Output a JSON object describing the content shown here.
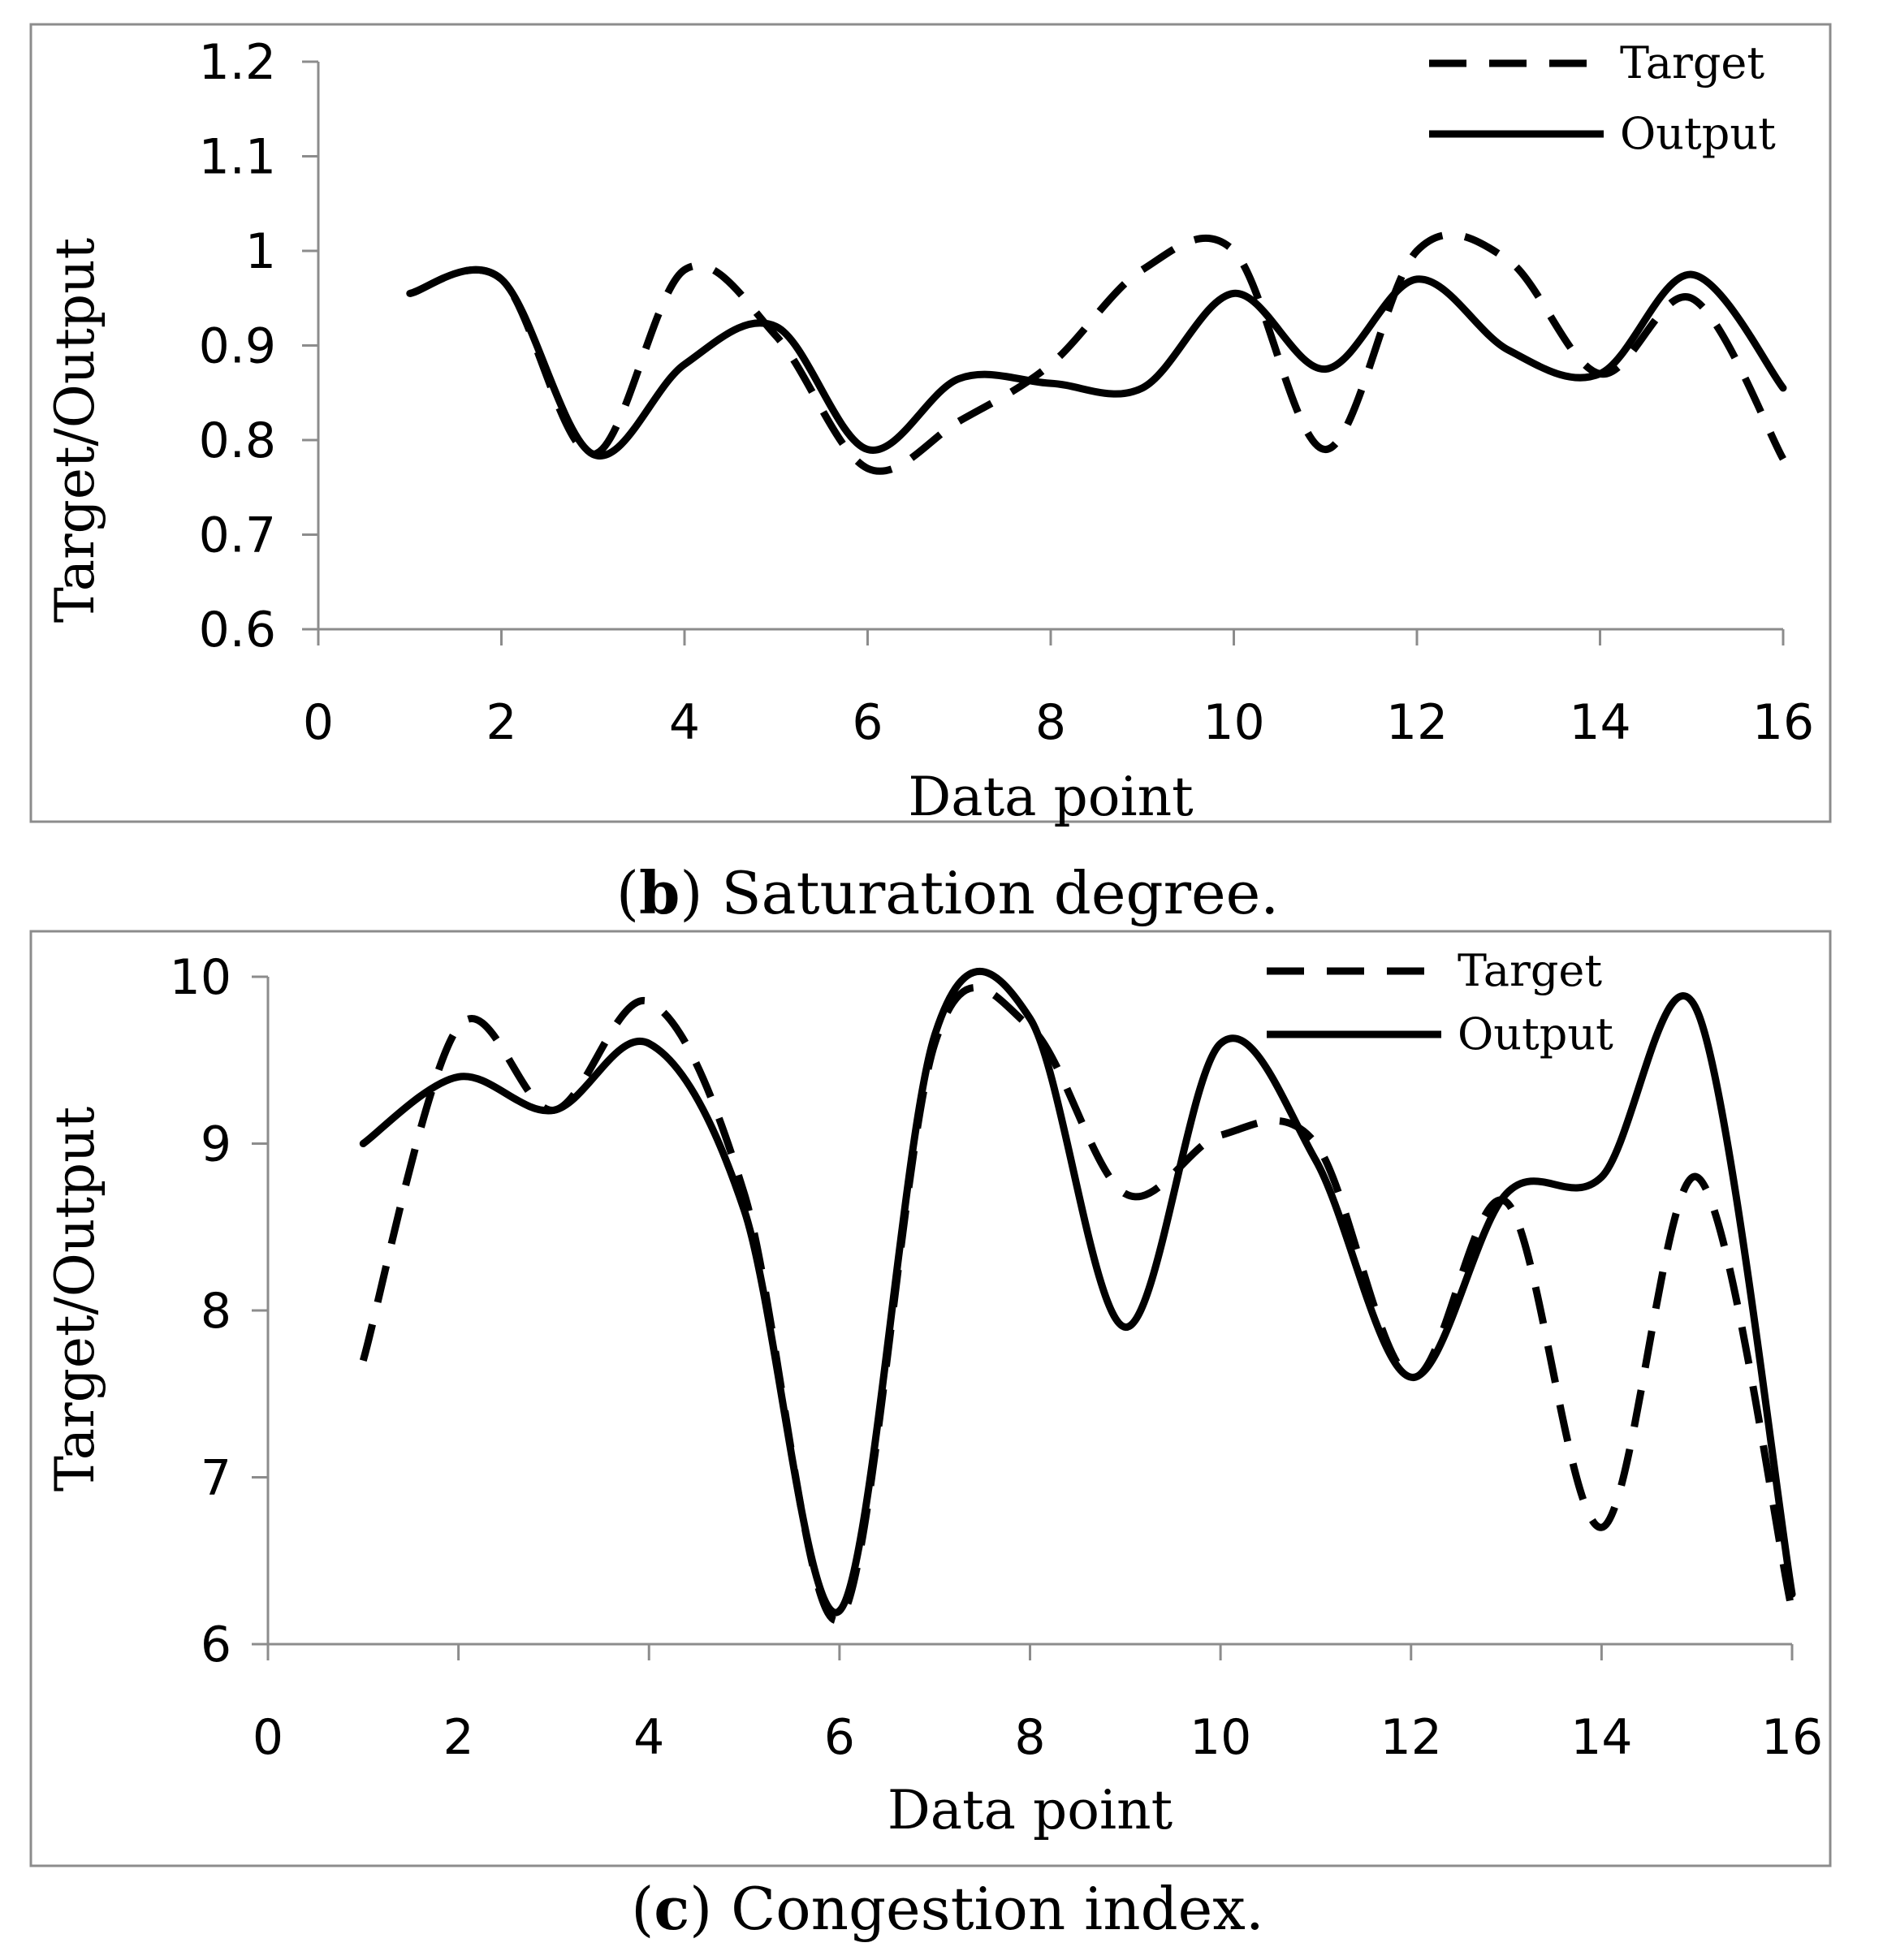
{
  "chart_data": [
    {
      "type": "line",
      "panel_label": "b",
      "caption": "Saturation degree.",
      "xlabel": "Data point",
      "ylabel": "Target/Output",
      "xlim": [
        0,
        16
      ],
      "ylim": [
        0.6,
        1.2
      ],
      "xticks": [
        0,
        2,
        4,
        6,
        8,
        10,
        12,
        14,
        16
      ],
      "xtick_labels": [
        "0",
        "2",
        "4",
        "6",
        "8",
        "10",
        "12",
        "14",
        "16"
      ],
      "yticks": [
        0.6,
        0.7,
        0.8,
        0.9,
        1.0,
        1.1,
        1.2
      ],
      "ytick_labels": [
        "0.6",
        "0.7",
        "0.8",
        "0.9",
        "1",
        "1.1",
        "1.2"
      ],
      "legend_position": "top-right",
      "x": [
        1,
        2,
        3,
        4,
        5,
        6,
        7,
        8,
        9,
        10,
        11,
        12,
        13,
        14,
        15,
        16
      ],
      "series": [
        {
          "name": "Target",
          "style": "dashed",
          "values": [
            0.955,
            0.97,
            0.785,
            0.98,
            0.91,
            0.77,
            0.82,
            0.88,
            0.98,
            1.0,
            0.79,
            1.0,
            0.99,
            0.87,
            0.95,
            0.78
          ]
        },
        {
          "name": "Output",
          "style": "solid",
          "values": [
            0.955,
            0.97,
            0.785,
            0.88,
            0.92,
            0.79,
            0.865,
            0.86,
            0.855,
            0.955,
            0.875,
            0.97,
            0.895,
            0.87,
            0.975,
            0.855
          ]
        }
      ]
    },
    {
      "type": "line",
      "panel_label": "c",
      "caption": "Congestion index.",
      "xlabel": "Data point",
      "ylabel": "Target/Output",
      "xlim": [
        0,
        16
      ],
      "ylim": [
        6,
        10
      ],
      "xticks": [
        0,
        2,
        4,
        6,
        8,
        10,
        12,
        14,
        16
      ],
      "xtick_labels": [
        "0",
        "2",
        "4",
        "6",
        "8",
        "10",
        "12",
        "14",
        "16"
      ],
      "yticks": [
        6,
        7,
        8,
        9,
        10
      ],
      "ytick_labels": [
        "6",
        "7",
        "8",
        "9",
        "10"
      ],
      "legend_position": "top-right",
      "x": [
        1,
        2,
        3,
        4,
        5,
        6,
        7,
        8,
        9,
        10,
        11,
        12,
        13,
        14,
        15,
        16
      ],
      "series": [
        {
          "name": "Target",
          "style": "dashed",
          "values": [
            7.7,
            9.7,
            9.2,
            9.85,
            8.7,
            6.15,
            9.6,
            9.7,
            8.7,
            9.05,
            9.0,
            7.6,
            8.65,
            6.7,
            8.8,
            6.2
          ]
        },
        {
          "name": "Output",
          "style": "solid",
          "values": [
            9.0,
            9.4,
            9.2,
            9.6,
            8.6,
            6.2,
            9.65,
            9.75,
            7.9,
            9.6,
            8.9,
            7.6,
            8.7,
            8.8,
            9.8,
            6.3
          ]
        }
      ]
    }
  ]
}
